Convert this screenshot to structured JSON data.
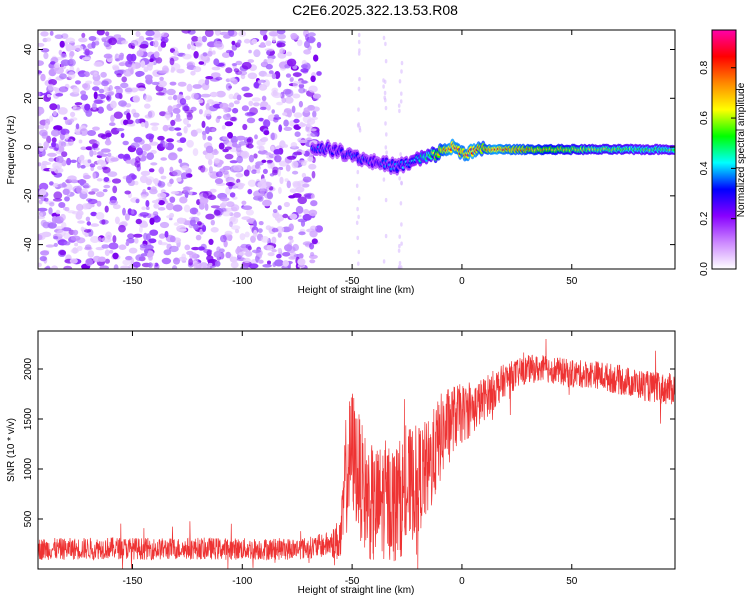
{
  "title": "C2E6.2025.322.13.53.R08",
  "chart_data": [
    {
      "type": "heatmap",
      "xlabel": "Height of straight line (km)",
      "ylabel": "Frequency (Hz)",
      "xlim": [
        -193,
        97
      ],
      "ylim": [
        -50,
        48
      ],
      "xticks": [
        -150,
        -100,
        -50,
        0,
        50
      ],
      "xtick_labels": [
        "-150",
        "-100",
        "-50",
        "0",
        "50"
      ],
      "yticks": [
        -40,
        -20,
        0,
        20,
        40
      ],
      "ytick_labels": [
        "-40",
        "-20",
        "0",
        "20",
        "40"
      ],
      "colorbar": {
        "label": "Normalized spectral amplitude",
        "range": [
          0,
          0.95
        ],
        "ticks": [
          0.0,
          0.2,
          0.4,
          0.6,
          0.8
        ],
        "tick_labels": [
          "0.0",
          "0.2",
          "0.4",
          "0.6",
          "0.8"
        ],
        "colormap": [
          "#ffffff",
          "#cc88ff",
          "#8800ff",
          "#0000ff",
          "#00ffff",
          "#00ff00",
          "#ffff00",
          "#ff8800",
          "#ff0000",
          "#ff00aa"
        ]
      },
      "noise_region_x": [
        -193,
        -65
      ],
      "ridge": {
        "x": [
          -68,
          -64,
          -60,
          -55,
          -50,
          -45,
          -40,
          -35,
          -30,
          -25,
          -20,
          -15,
          -10,
          -5,
          0,
          5,
          10,
          15,
          20,
          30,
          40,
          50,
          60,
          70,
          80,
          90,
          97
        ],
        "y": [
          -1,
          0,
          -1,
          -2,
          -3,
          -5,
          -6,
          -7,
          -8,
          -7,
          -5,
          -4,
          -2,
          0,
          -2,
          -2,
          -1,
          -1,
          -1,
          -1,
          -1,
          -1,
          -1,
          -1,
          -1,
          -1,
          -1
        ],
        "amplitude": [
          0.35,
          0.35,
          0.3,
          0.32,
          0.35,
          0.35,
          0.3,
          0.35,
          0.35,
          0.4,
          0.45,
          0.55,
          0.75,
          0.85,
          0.8,
          0.85,
          0.75,
          0.85,
          0.8,
          0.75,
          0.7,
          0.65,
          0.6,
          0.6,
          0.55,
          0.55,
          0.55
        ]
      }
    },
    {
      "type": "line",
      "xlabel": "Height of straight line (km)",
      "ylabel": "SNR (10 * v/v)",
      "xlim": [
        -193,
        97
      ],
      "ylim": [
        0,
        2380
      ],
      "xticks": [
        -150,
        -100,
        -50,
        0,
        50
      ],
      "xtick_labels": [
        "-150",
        "-100",
        "-50",
        "0",
        "50"
      ],
      "yticks": [
        500,
        1000,
        1500,
        2000
      ],
      "ytick_labels": [
        "500",
        "1000",
        "1500",
        "2000"
      ],
      "color": "#ee3333",
      "series": [
        {
          "name": "SNR",
          "x": [
            -193,
            -180,
            -160,
            -140,
            -120,
            -100,
            -80,
            -70,
            -60,
            -55,
            -53,
            -50,
            -45,
            -40,
            -35,
            -30,
            -25,
            -20,
            -15,
            -10,
            -5,
            0,
            5,
            10,
            15,
            20,
            25,
            30,
            35,
            40,
            50,
            60,
            70,
            80,
            90,
            97
          ],
          "y": [
            200,
            200,
            210,
            200,
            205,
            200,
            200,
            210,
            250,
            300,
            900,
            1200,
            800,
            600,
            700,
            650,
            800,
            900,
            1000,
            1300,
            1500,
            1550,
            1600,
            1700,
            1800,
            1900,
            1950,
            2000,
            2000,
            2000,
            1950,
            1950,
            1900,
            1850,
            1800,
            1800
          ],
          "spread": [
            110,
            110,
            110,
            110,
            110,
            110,
            110,
            110,
            130,
            250,
            600,
            650,
            600,
            600,
            600,
            600,
            600,
            550,
            500,
            450,
            350,
            300,
            260,
            220,
            200,
            160,
            150,
            140,
            140,
            140,
            140,
            140,
            150,
            150,
            160,
            160
          ]
        }
      ]
    }
  ]
}
